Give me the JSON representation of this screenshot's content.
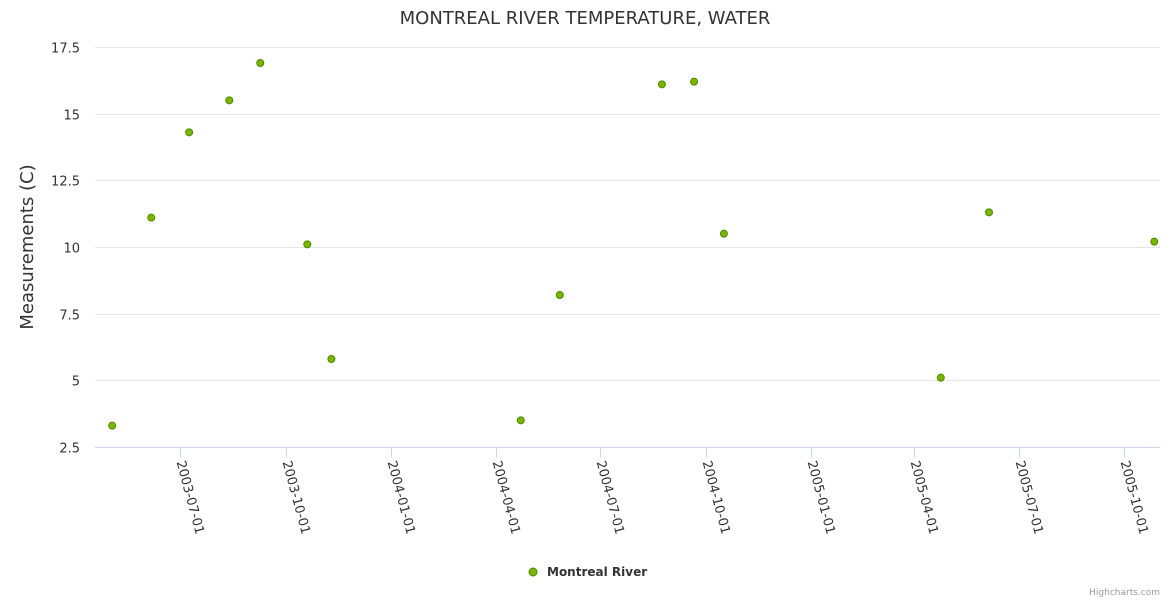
{
  "chart_data": {
    "type": "scatter",
    "title": "MONTREAL RIVER TEMPERATURE, WATER",
    "xlabel": "",
    "ylabel": "Measurements (C)",
    "ylim": [
      2.5,
      17.5
    ],
    "y_ticks": [
      2.5,
      5,
      7.5,
      10,
      12.5,
      15,
      17.5
    ],
    "y_tick_labels": [
      "2.5",
      "5",
      "7.5",
      "10",
      "12.5",
      "15",
      "17.5"
    ],
    "x_range": [
      "2003-04-18",
      "2005-11-01"
    ],
    "x_ticks": [
      "2003-07-01",
      "2003-10-01",
      "2004-01-01",
      "2004-04-01",
      "2004-07-01",
      "2004-10-01",
      "2005-01-01",
      "2005-04-01",
      "2005-07-01",
      "2005-10-01"
    ],
    "grid": true,
    "legend_position": "bottom-center",
    "series": [
      {
        "name": "Montreal River",
        "color": "#7cb500",
        "points": [
          {
            "x": "2003-05-03",
            "y": 3.3
          },
          {
            "x": "2003-06-06",
            "y": 11.1
          },
          {
            "x": "2003-07-09",
            "y": 14.3
          },
          {
            "x": "2003-08-13",
            "y": 15.5
          },
          {
            "x": "2003-09-09",
            "y": 16.9
          },
          {
            "x": "2003-10-20",
            "y": 10.1
          },
          {
            "x": "2003-11-10",
            "y": 5.8
          },
          {
            "x": "2004-04-23",
            "y": 3.5
          },
          {
            "x": "2004-05-27",
            "y": 8.2
          },
          {
            "x": "2004-08-24",
            "y": 16.1
          },
          {
            "x": "2004-09-21",
            "y": 16.2
          },
          {
            "x": "2004-10-17",
            "y": 10.5
          },
          {
            "x": "2005-04-24",
            "y": 5.1
          },
          {
            "x": "2005-06-05",
            "y": 11.3
          },
          {
            "x": "2005-10-27",
            "y": 10.2
          }
        ]
      }
    ]
  },
  "credits": "Highcharts.com"
}
